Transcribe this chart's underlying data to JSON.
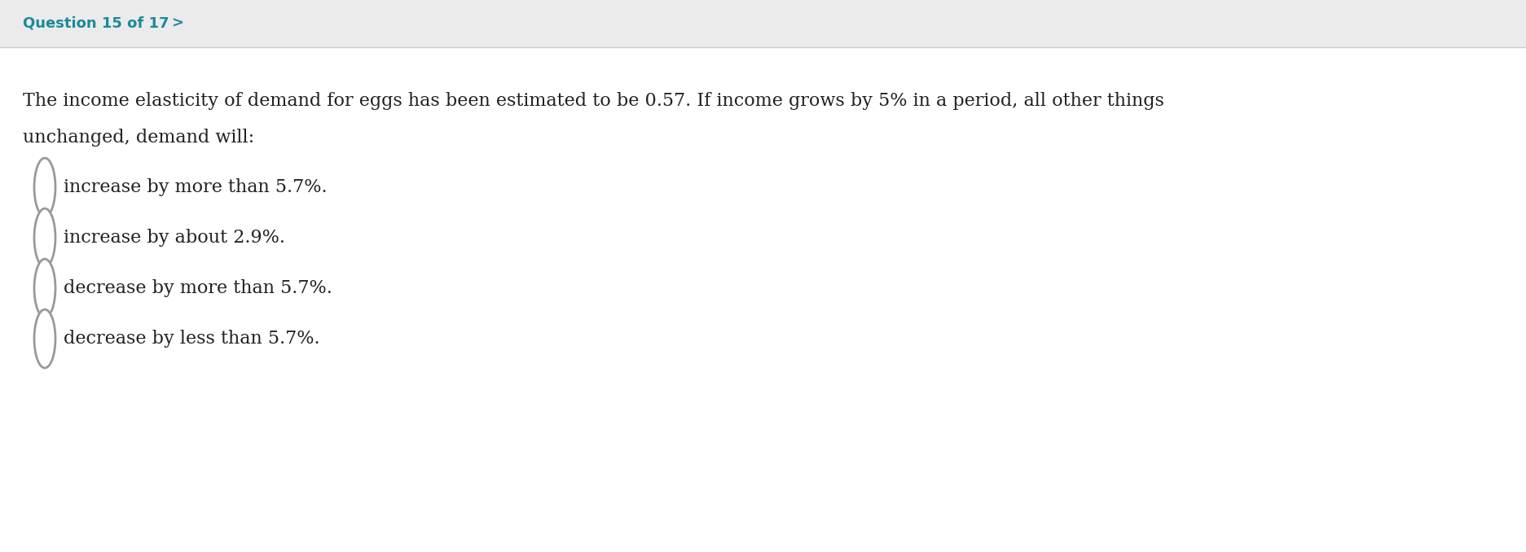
{
  "header_text": "Question 15 of 17",
  "header_arrow": ">",
  "header_color": "#1a8a9a",
  "header_bg_color": "#ebebeb",
  "body_bg_color": "#ffffff",
  "question_line1": "The income elasticity of demand for eggs has been estimated to be 0.57. If income grows by 5% in a period, all other things",
  "question_line2": "unchanged, demand will:",
  "options": [
    "increase by more than 5.7%.",
    "increase by about 2.9%.",
    "decrease by more than 5.7%.",
    "decrease by less than 5.7%."
  ],
  "question_fontsize": 16,
  "option_fontsize": 16,
  "header_fontsize": 13,
  "circle_color": "#999999",
  "text_color": "#222222",
  "fig_width": 18.74,
  "fig_height": 6.78,
  "dpi": 100
}
